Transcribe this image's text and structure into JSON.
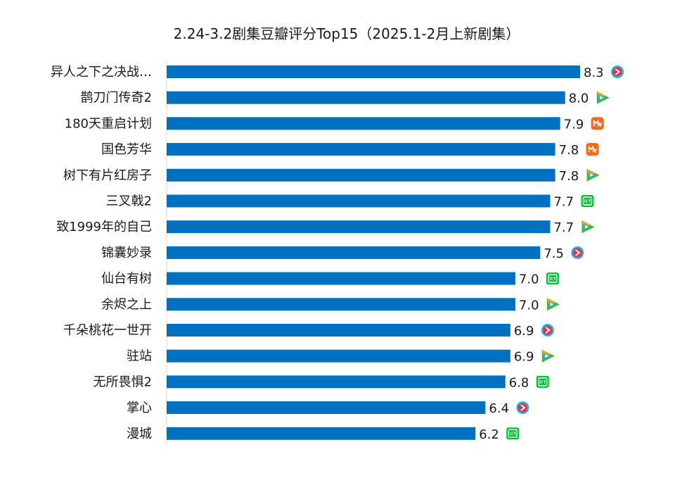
{
  "chart_data": {
    "type": "bar",
    "orientation": "horizontal",
    "title": "2.24-3.2剧集豆瓣评分Top15（2025.1-2月上新剧集）",
    "xlabel": "",
    "ylabel": "",
    "xlim": [
      0,
      8.3
    ],
    "grid": false,
    "legend": "none",
    "bar_color": "#0070c0",
    "categories": [
      "异人之下之决战…",
      "鹊刀门传奇2",
      "180天重启计划",
      "国色芳华",
      "树下有片红房子",
      "三叉戟2",
      "致1999年的自己",
      "锦囊妙录",
      "仙台有树",
      "余烬之上",
      "千朵桃花一世开",
      "驻站",
      "无所畏惧2",
      "掌心",
      "漫城"
    ],
    "values": [
      8.3,
      8.0,
      7.9,
      7.8,
      7.8,
      7.7,
      7.7,
      7.5,
      7.0,
      7.0,
      6.9,
      6.9,
      6.8,
      6.4,
      6.2
    ],
    "value_labels": [
      "8.3",
      "8.0",
      "7.9",
      "7.8",
      "7.8",
      "7.7",
      "7.7",
      "7.5",
      "7.0",
      "7.0",
      "6.9",
      "6.9",
      "6.8",
      "6.4",
      "6.2"
    ],
    "platform_icons": [
      "youku-icon",
      "tencent-video-icon",
      "mgtv-icon",
      "mgtv-icon",
      "tencent-video-icon",
      "iqiyi-icon",
      "tencent-video-icon",
      "youku-icon",
      "iqiyi-icon",
      "tencent-video-icon",
      "youku-icon",
      "tencent-video-icon",
      "iqiyi-icon",
      "youku-icon",
      "iqiyi-icon"
    ],
    "platform_colors": {
      "youku": "#e8304a",
      "youku_ring": "#22b4ec",
      "tencent_green": "#3dbb3a",
      "tencent_orange": "#f7a21a",
      "tencent_blue": "#2aa7e8",
      "mgtv": "#f06a1d",
      "iqiyi": "#00c035"
    }
  }
}
